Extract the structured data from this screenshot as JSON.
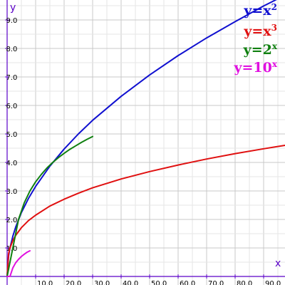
{
  "chart_data": {
    "type": "line",
    "x_axis": {
      "label": "x",
      "range": [
        -2.5,
        97.5
      ],
      "ticks": [
        10,
        20,
        30,
        40,
        50,
        60,
        70,
        80,
        90
      ],
      "tick_labels": [
        "10.0",
        "20.0",
        "30.0",
        "40.0",
        "50.0",
        "60.0",
        "70.0",
        "80.0",
        "90.0"
      ]
    },
    "y_axis": {
      "label": "y",
      "range": [
        -0.3,
        9.7
      ],
      "ticks": [
        1,
        2,
        3,
        4,
        5,
        6,
        7,
        8,
        9
      ],
      "tick_labels": [
        "1.0",
        "2.0",
        "3.0",
        "4.0",
        "5.0",
        "6.0",
        "7.0",
        "8.0",
        "9.0"
      ]
    },
    "grid": true,
    "legend_position": "top-right",
    "series": [
      {
        "name": "y=x^2",
        "label_base": "y=x",
        "label_sup": "2",
        "color": "#1010d0",
        "x": [
          0,
          0.5,
          1,
          2,
          3,
          5,
          7.5,
          10,
          15,
          20,
          25,
          30,
          40,
          50,
          60,
          70,
          80,
          90,
          97.5
        ],
        "y": [
          0,
          0.71,
          1,
          1.41,
          1.73,
          2.24,
          2.74,
          3.16,
          3.87,
          4.47,
          5.0,
          5.48,
          6.32,
          7.07,
          7.75,
          8.37,
          8.94,
          9.49,
          9.87
        ],
        "display_y": [
          0,
          0.71,
          1,
          1.41,
          1.73,
          2.24,
          2.74,
          3.16,
          3.87,
          4.47,
          5.0,
          5.48,
          6.32,
          7.07,
          7.75,
          8.37,
          8.94,
          9.49,
          9.87
        ]
      },
      {
        "name": "y=x^3",
        "label_base": "y=x",
        "label_sup": "3",
        "color": "#e01010",
        "x": [
          0,
          0.5,
          1,
          2,
          3,
          5,
          7.5,
          10,
          15,
          20,
          25,
          30,
          40,
          50,
          60,
          70,
          80,
          90,
          97.5
        ],
        "y": [
          0,
          0.79,
          1,
          1.26,
          1.44,
          1.71,
          1.96,
          2.15,
          2.47,
          2.71,
          2.92,
          3.11,
          3.42,
          3.68,
          3.91,
          4.12,
          4.31,
          4.48,
          4.6
        ]
      },
      {
        "name": "y=2^x",
        "label_base": "y=2",
        "label_sup": "x",
        "color": "#108010",
        "x": [
          0,
          2,
          4,
          6,
          8,
          10,
          12,
          14,
          16,
          18,
          20,
          22,
          24,
          26,
          28,
          30
        ],
        "y": [
          0,
          1,
          2,
          2.58,
          3,
          3.32,
          3.58,
          3.81,
          4,
          4.17,
          4.32,
          4.46,
          4.58,
          4.7,
          4.81,
          4.91
        ]
      },
      {
        "name": "y=10^x",
        "label_base": "y=10",
        "label_sup": "x",
        "color": "#e010e0",
        "x": [
          0,
          1,
          2,
          3,
          4,
          5,
          6,
          7,
          8
        ],
        "y": [
          0,
          0,
          0.3,
          0.48,
          0.6,
          0.7,
          0.78,
          0.85,
          0.9
        ]
      }
    ]
  }
}
